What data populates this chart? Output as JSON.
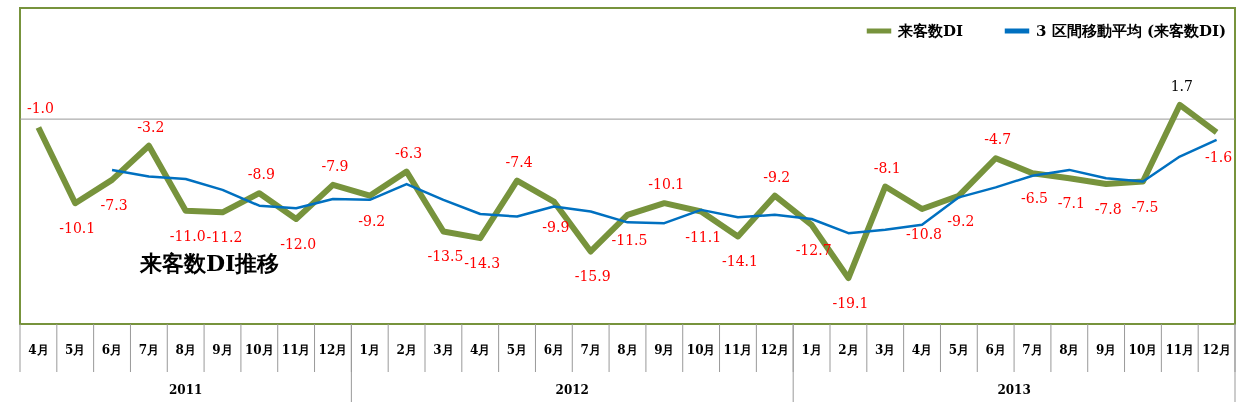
{
  "chart_data": {
    "type": "line",
    "title": "来客数DI推移",
    "categories": [
      "4月",
      "5月",
      "6月",
      "7月",
      "8月",
      "9月",
      "10月",
      "11月",
      "12月",
      "1月",
      "2月",
      "3月",
      "4月",
      "5月",
      "6月",
      "7月",
      "8月",
      "9月",
      "10月",
      "11月",
      "12月",
      "1月",
      "2月",
      "3月",
      "4月",
      "5月",
      "6月",
      "7月",
      "8月",
      "9月",
      "10月",
      "11月",
      "12月"
    ],
    "annotations": [
      "2011",
      "2012",
      "2013"
    ],
    "series": [
      {
        "name": "来客数DI",
        "color": "#77933c",
        "values": [
          -1.0,
          -10.1,
          -7.3,
          -3.2,
          -11.0,
          -11.2,
          -8.9,
          -12.0,
          -7.9,
          -9.2,
          -6.3,
          -13.5,
          -14.3,
          -7.4,
          -9.9,
          -15.9,
          -11.5,
          -10.1,
          -11.1,
          -14.1,
          -9.2,
          -12.7,
          -19.1,
          -8.1,
          -10.8,
          -9.2,
          -4.7,
          -6.5,
          -7.1,
          -7.8,
          -7.5,
          1.7,
          -1.6
        ],
        "value_labels": [
          "-1.0",
          "-10.1",
          "-7.3",
          "-3.2",
          "-11.0",
          "-11.2",
          "-8.9",
          "-12.0",
          "-7.9",
          "-9.2",
          "-6.3",
          "-13.5",
          "-14.3",
          "-7.4",
          "-9.9",
          "-15.9",
          "-11.5",
          "-10.1",
          "-11.1",
          "-14.1",
          "-9.2",
          "-12.7",
          "-19.1",
          "-8.1",
          "-10.8",
          "-9.2",
          "-4.7",
          "-6.5",
          "-7.1",
          "-7.8",
          "-7.5",
          "1.7",
          "-1.6"
        ]
      },
      {
        "name": "3 区間移動平均 (来客数DI)",
        "color": "#0070c0",
        "values": [
          null,
          null,
          -6.1,
          -6.9,
          -7.2,
          -8.5,
          -10.4,
          -10.7,
          -9.6,
          -9.7,
          -7.8,
          -9.7,
          -11.4,
          -11.7,
          -10.5,
          -11.1,
          -12.4,
          -12.5,
          -10.9,
          -11.8,
          -11.5,
          -12.0,
          -13.7,
          -13.3,
          -12.7,
          -9.4,
          -8.2,
          -6.8,
          -6.1,
          -7.1,
          -7.5,
          -4.5,
          -2.5
        ]
      }
    ],
    "legend": "top right",
    "grid": false,
    "marker": "none",
    "line_style": "solid"
  }
}
